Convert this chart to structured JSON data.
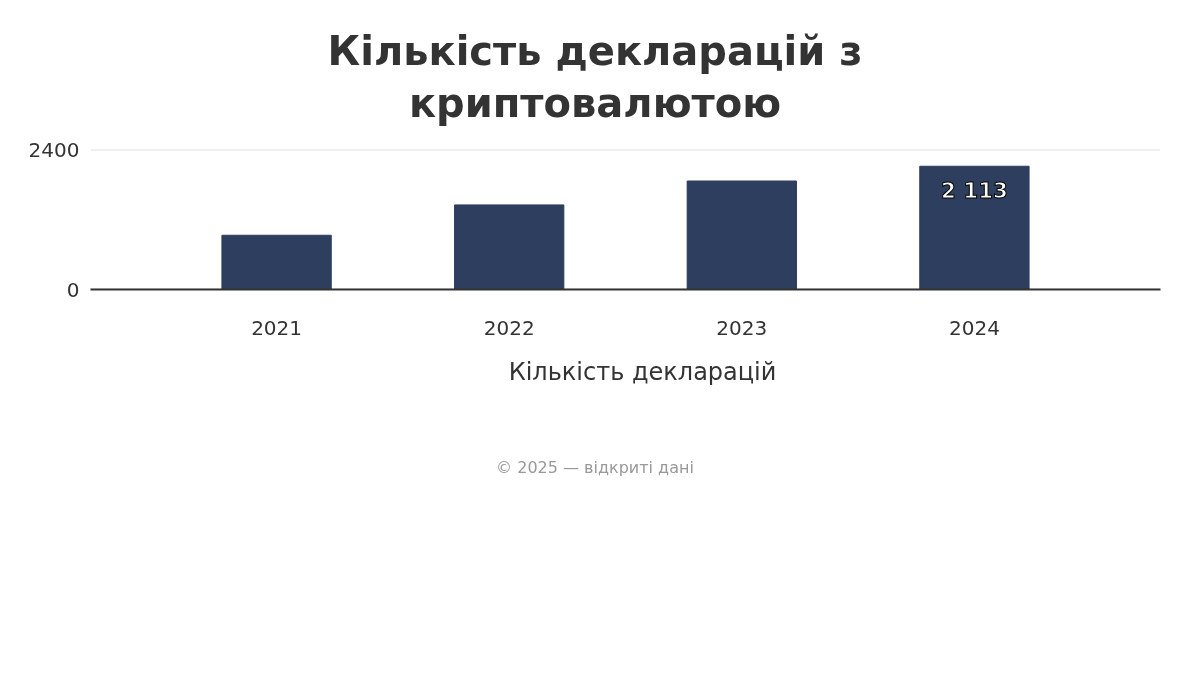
{
  "chart_data": {
    "type": "bar",
    "title": "Кількість декларацій з криптовалютою",
    "categories": [
      "2021",
      "2022",
      "2023",
      "2024"
    ],
    "series": [
      {
        "name": "Кількість декларацій",
        "color": "#2e3e5f",
        "values": [
          930,
          1450,
          1860,
          2113
        ],
        "value_labels": [
          null,
          null,
          null,
          "2 113"
        ]
      }
    ],
    "ylim": [
      0,
      2400
    ],
    "yticks": [
      0,
      2400
    ],
    "grid": "y",
    "legend": "bottom",
    "annotations": [
      "© 2025 — відкриті дані"
    ]
  }
}
